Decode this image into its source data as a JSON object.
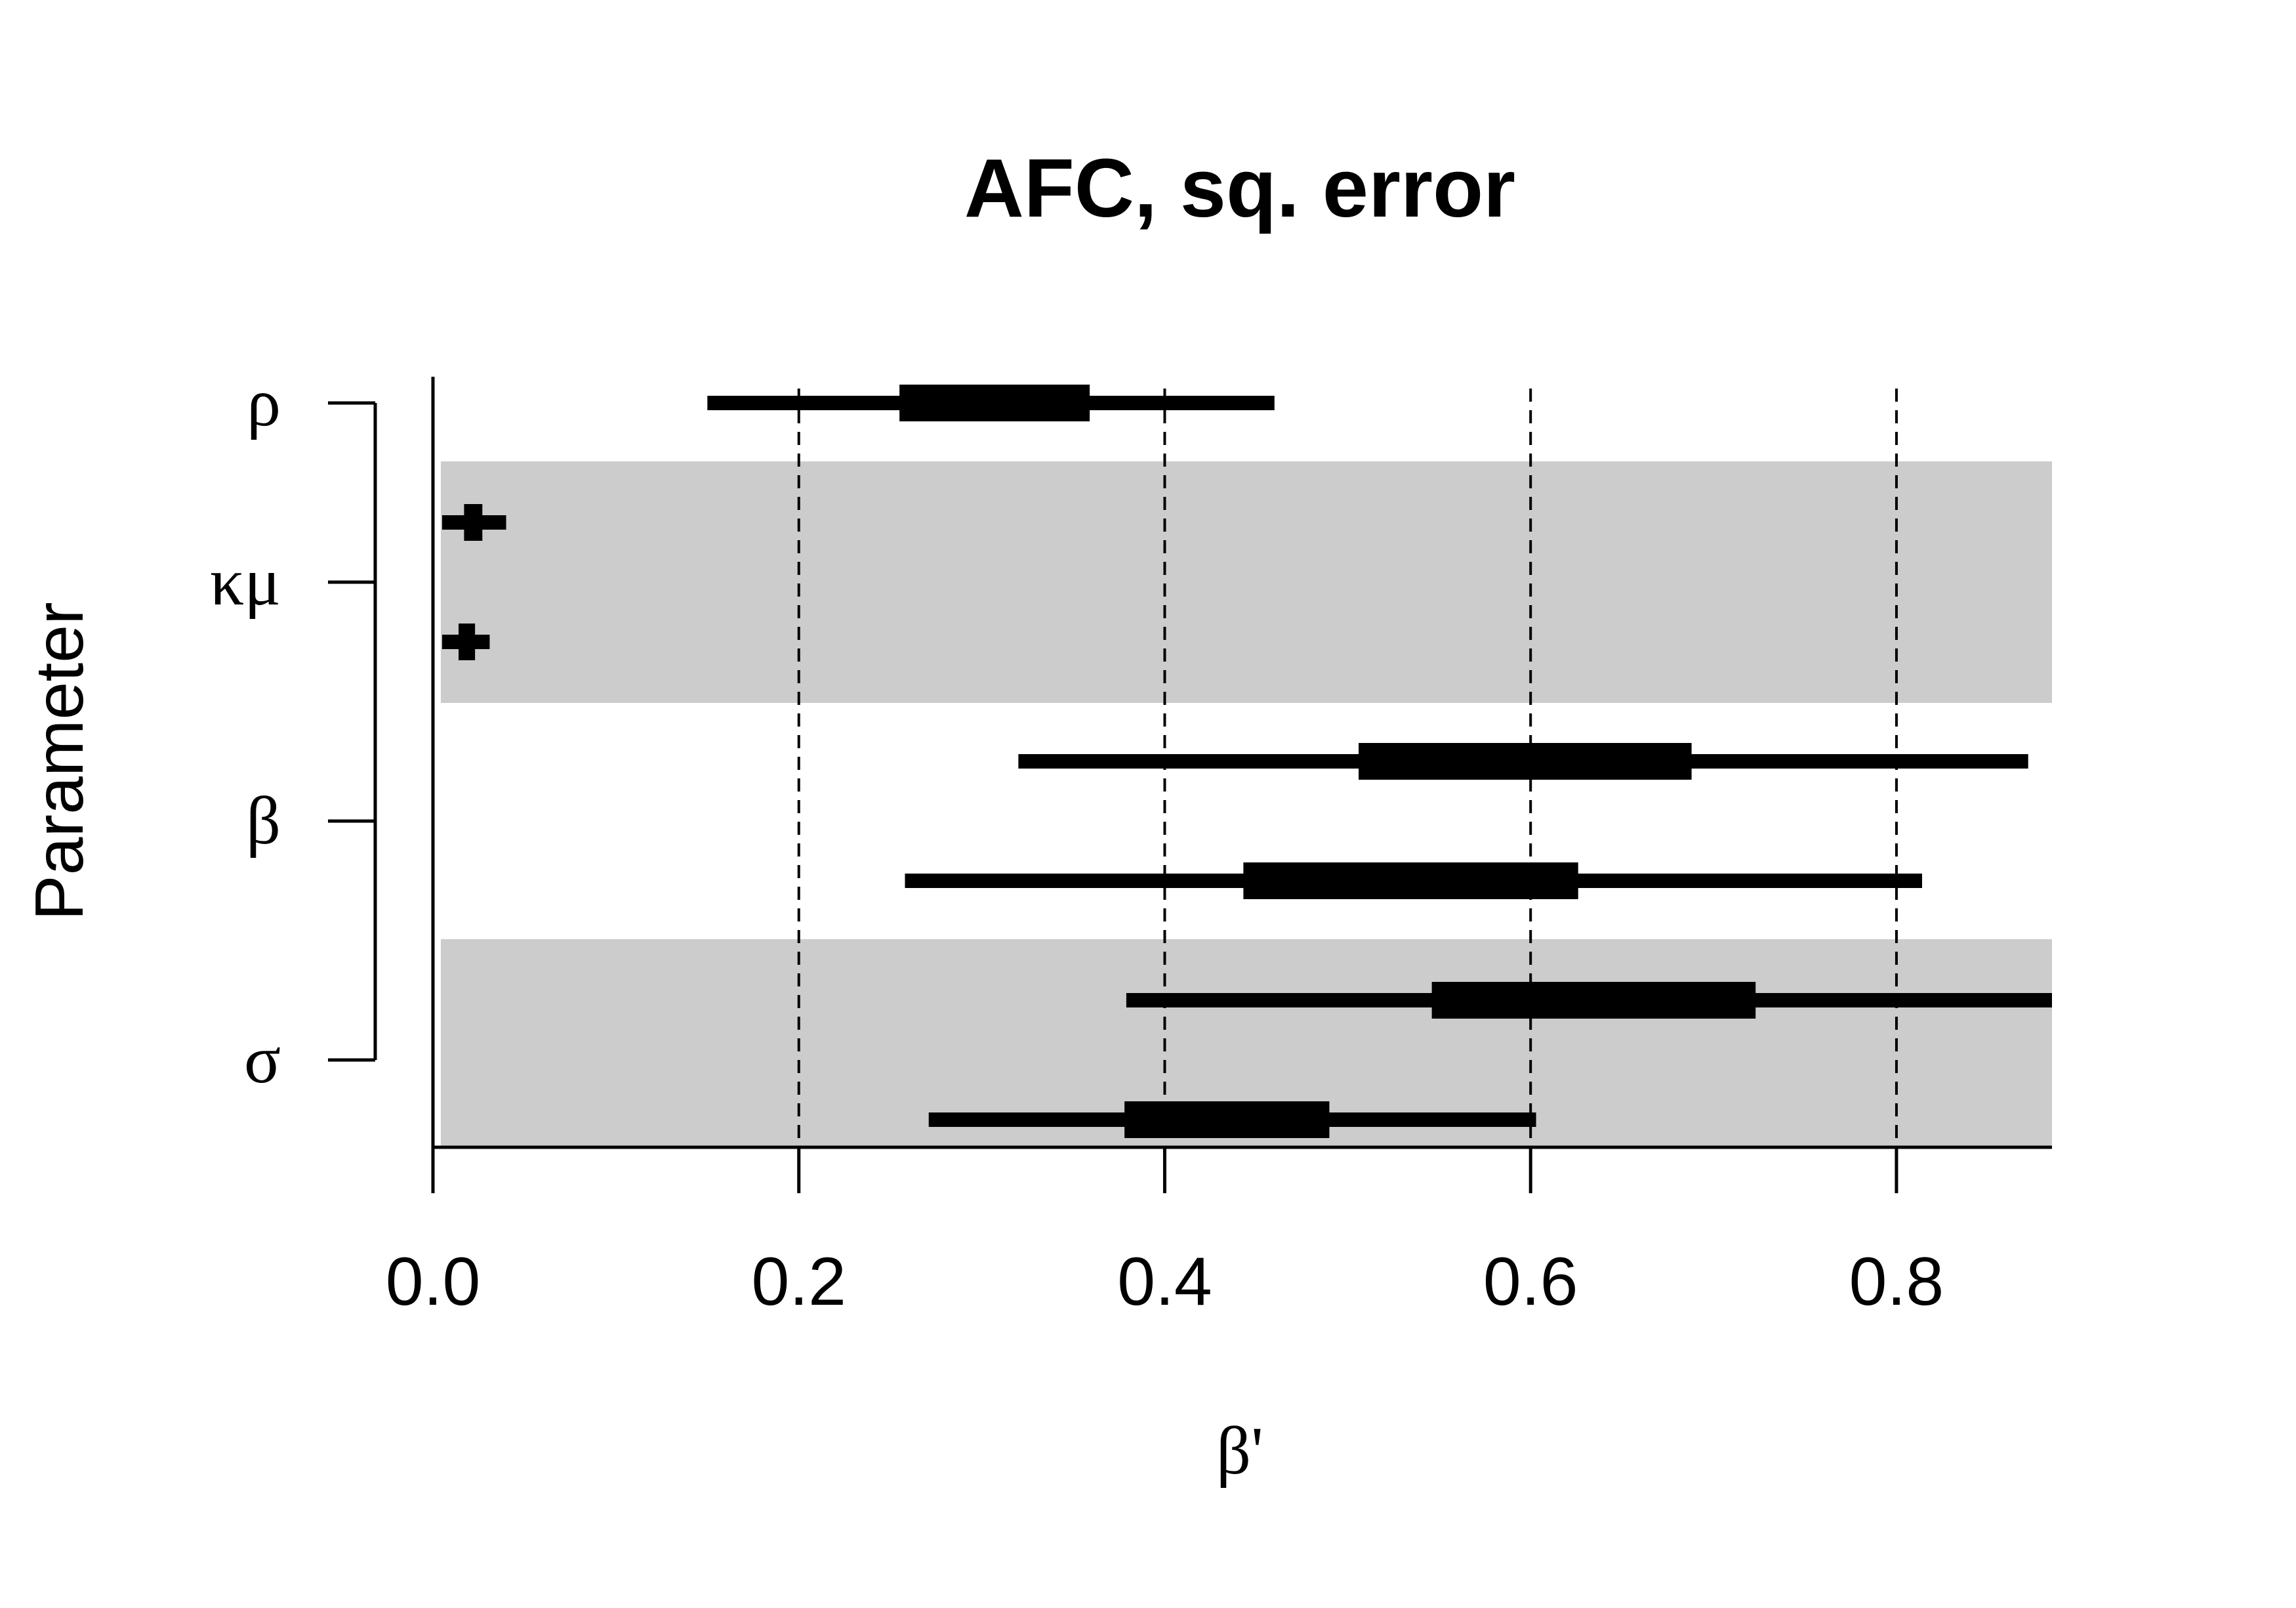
{
  "chart_data": {
    "type": "interval",
    "title": "AFC, sq. error",
    "xlabel": "β'",
    "ylabel": "Parameter",
    "xlim": [
      0,
      0.885
    ],
    "x_ticks": [
      "0.0",
      "0.2",
      "0.4",
      "0.6",
      "0.8"
    ],
    "x_tick_values": [
      0,
      0.2,
      0.4,
      0.6,
      0.8
    ],
    "reference_lines": [
      0.2,
      0.4,
      0.6,
      0.8
    ],
    "grid": false,
    "groups": [
      {
        "label": "ρ",
        "shaded": false
      },
      {
        "label": "κμ",
        "shaded": true
      },
      {
        "label": "β",
        "shaded": false
      },
      {
        "label": "σ",
        "shaded": true
      }
    ],
    "intervals": [
      {
        "group": "ρ",
        "outer": [
          0.15,
          0.46
        ],
        "inner": [
          0.255,
          0.359
        ]
      },
      {
        "group": "κμ",
        "outer": [
          0.005,
          0.04
        ],
        "inner": [
          0.017,
          0.027
        ]
      },
      {
        "group": "κμ",
        "outer": [
          0.005,
          0.031
        ],
        "inner": [
          0.014,
          0.023
        ]
      },
      {
        "group": "β",
        "outer": [
          0.32,
          0.872
        ],
        "inner": [
          0.506,
          0.688
        ]
      },
      {
        "group": "β",
        "outer": [
          0.258,
          0.814
        ],
        "inner": [
          0.443,
          0.626
        ]
      },
      {
        "group": "σ",
        "outer": [
          0.379,
          0.885
        ],
        "inner": [
          0.546,
          0.723
        ]
      },
      {
        "group": "σ",
        "outer": [
          0.271,
          0.603
        ],
        "inner": [
          0.378,
          0.49
        ]
      }
    ],
    "colors": {
      "interval": "#000000",
      "shade": "#cccccc",
      "axis": "#000000"
    }
  }
}
